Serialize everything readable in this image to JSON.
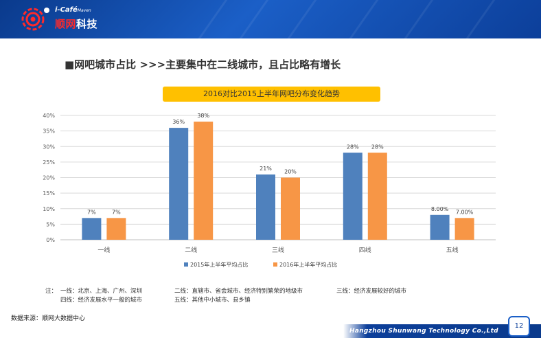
{
  "header": {
    "brand_small": "i-Café",
    "brand_sub": "Maven",
    "brand_name_red": "顺网",
    "brand_name_white": "科技"
  },
  "slide": {
    "title": "■网吧城市占比  >>>主要集中在二线城市，且占比略有增长"
  },
  "chart_data": {
    "type": "bar",
    "title": "2016对比2015上半年网吧分布变化趋势",
    "categories": [
      "一线",
      "二线",
      "三线",
      "四线",
      "五线"
    ],
    "series": [
      {
        "name": "2015年上半年平均占比",
        "color": "#4f81bd",
        "values": [
          7,
          36,
          21,
          28,
          8
        ],
        "labels": [
          "7%",
          "36%",
          "21%",
          "28%",
          "8.00%"
        ]
      },
      {
        "name": "2016年上半年平均占比",
        "color": "#f79646",
        "values": [
          7,
          38,
          20,
          28,
          7
        ],
        "labels": [
          "7%",
          "38%",
          "20%",
          "28%",
          "7.00%"
        ]
      }
    ],
    "ylim": [
      0,
      40
    ],
    "yticks": [
      "0%",
      "5%",
      "10%",
      "15%",
      "20%",
      "25%",
      "30%",
      "35%",
      "40%"
    ],
    "grid": true,
    "legend": "bottom"
  },
  "notes": {
    "prefix": "注：",
    "tier1": "一线：北京、上海、广州、深圳",
    "tier2": "二线：直辖市、省会城市、经济特别繁荣的地级市",
    "tier3": "三线：经济发展较好的城市",
    "tier4": "四线：经济发展水平一般的城市",
    "tier5": "五线：其他中小城市、县乡镇"
  },
  "source": "数据来源：顺网大数据中心",
  "footer": {
    "company": "Hangzhou Shunwang Technology Co.,Ltd",
    "page_number": "12"
  }
}
